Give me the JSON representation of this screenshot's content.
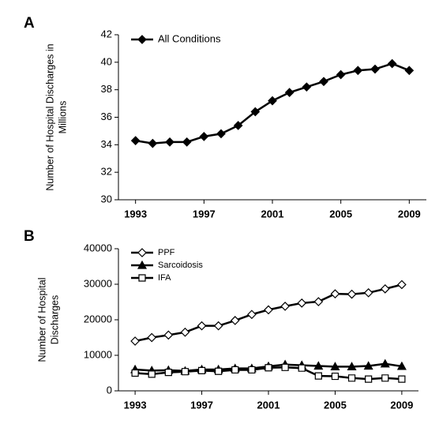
{
  "chart_data": [
    {
      "type": "line",
      "panel_label": "A",
      "ylabel": [
        "Number of Hospital Discharges in",
        "Millions"
      ],
      "x": [
        1993,
        1994,
        1995,
        1996,
        1997,
        1998,
        1999,
        2000,
        2001,
        2002,
        2003,
        2004,
        2005,
        2006,
        2007,
        2008,
        2009
      ],
      "series": [
        {
          "name": "All Conditions",
          "color": "#000000",
          "marker": "diamond",
          "marker_fill": "#000000",
          "values": [
            34.3,
            34.1,
            34.2,
            34.2,
            34.6,
            34.8,
            35.4,
            36.4,
            37.2,
            37.8,
            38.2,
            38.6,
            39.1,
            39.4,
            39.5,
            39.9,
            39.4
          ]
        }
      ],
      "xlim": [
        1992,
        2010
      ],
      "xticks": [
        1993,
        1997,
        2001,
        2005,
        2009
      ],
      "ylim": [
        30,
        42
      ],
      "yticks": [
        30,
        32,
        34,
        36,
        38,
        40,
        42
      ],
      "legend": "upper left"
    },
    {
      "type": "line",
      "panel_label": "B",
      "ylabel": [
        "Number of Hospital",
        "Discharges"
      ],
      "x": [
        1993,
        1994,
        1995,
        1996,
        1997,
        1998,
        1999,
        2000,
        2001,
        2002,
        2003,
        2004,
        2005,
        2006,
        2007,
        2008,
        2009
      ],
      "series": [
        {
          "name": "PPF",
          "color": "#000000",
          "marker": "diamond",
          "marker_fill": "#ffffff",
          "values": [
            14000,
            15000,
            15700,
            16500,
            18300,
            18300,
            19800,
            21500,
            22800,
            23800,
            24700,
            25100,
            27300,
            27200,
            27600,
            28700,
            29900
          ]
        },
        {
          "name": "Sarcoidosis",
          "color": "#000000",
          "marker": "triangle",
          "marker_fill": "#000000",
          "values": [
            6000,
            5700,
            5800,
            5600,
            6000,
            6000,
            6300,
            6300,
            6900,
            7400,
            7200,
            7000,
            6800,
            6800,
            7000,
            7600,
            6900
          ]
        },
        {
          "name": "IFA",
          "color": "#000000",
          "marker": "square",
          "marker_fill": "#ffffff",
          "values": [
            5000,
            4700,
            5200,
            5400,
            5700,
            5500,
            5900,
            5900,
            6500,
            6600,
            6400,
            4200,
            4100,
            3600,
            3300,
            3600,
            3300
          ]
        }
      ],
      "xlim": [
        1992,
        2010
      ],
      "xticks": [
        1993,
        1997,
        2001,
        2005,
        2009
      ],
      "ylim": [
        0,
        40000
      ],
      "yticks": [
        0,
        10000,
        20000,
        30000,
        40000
      ],
      "legend": "upper left"
    }
  ]
}
